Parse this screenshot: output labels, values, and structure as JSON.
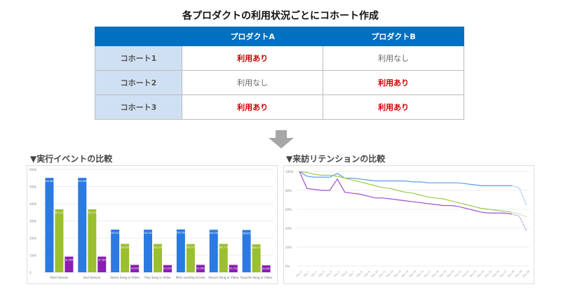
{
  "title": "各プロダクトの利用状況ごとにコホート作成",
  "table": {
    "headers": [
      "",
      "プロダクトA",
      "プロダクトB"
    ],
    "rows": [
      {
        "label": "コホート1",
        "a": "利用あり",
        "b": "利用なし"
      },
      {
        "label": "コホート2",
        "a": "利用なし",
        "b": "利用あり"
      },
      {
        "label": "コホート3",
        "a": "利用あり",
        "b": "利用あり"
      }
    ]
  },
  "colors": {
    "header": "#0070c0",
    "row_header": "#cfe0f3",
    "yes": "#cc0000",
    "blue": "#2a7ae2",
    "green": "#9bbf30",
    "purple": "#8a1fb0"
  },
  "sections": {
    "left": "▼実行イベントの比較",
    "right": "▼来訪リテンションの比較"
  },
  "chart_data": [
    {
      "type": "bar",
      "title": "実行イベントの比較",
      "categories": [
        "Start Session",
        "End Session",
        "Select Song or Video",
        "Play Song or Video",
        "Main Landing Screen",
        "Search Song or Video",
        "Favorite Song or Video"
      ],
      "yticks": [
        "0",
        "100k",
        "200k",
        "300k",
        "400k",
        "500k",
        "600k"
      ],
      "ylim": [
        0,
        600000
      ],
      "series": [
        {
          "name": "コホート1",
          "color": "#2a7ae2",
          "values": [
            550663,
            550663,
            248970,
            248352,
            250030,
            248058,
            246639
          ],
          "labels": [
            "550,663",
            "550,663",
            "248,970",
            "248,352",
            "250,030",
            "248,058",
            "246,639"
          ]
        },
        {
          "name": "コホート2",
          "color": "#9bbf30",
          "values": [
            367123,
            367123,
            165871,
            165104,
            164557,
            165771,
            163073
          ],
          "labels": [
            "367,123",
            "367,123",
            "165,871",
            "165,104",
            "164,557",
            "165,771",
            "163,073"
          ]
        },
        {
          "name": "コホート3",
          "color": "#8a1fb0",
          "values": [
            91584,
            91584,
            43406,
            42299,
            43569,
            43279,
            40683
          ],
          "labels": [
            "91,584",
            "91,584",
            "43,406",
            "42,299",
            "43,569",
            "43,279",
            "40,683"
          ]
        }
      ]
    },
    {
      "type": "line",
      "title": "来訪リテンションの比較",
      "x": [
        "Day 0",
        "Day 1",
        "Day 2",
        "Day 3",
        "Day 4",
        "Day 5",
        "Day 6",
        "Day 7",
        "Day 8",
        "Day 9",
        "Day 10",
        "Day 11",
        "Day 12",
        "Day 13",
        "Day 14",
        "Day 15",
        "Day 16",
        "Day 17",
        "Day 18",
        "Day 19",
        "Day 20",
        "Day 21",
        "Day 22",
        "Day 23",
        "Day 24",
        "Day 25",
        "Day 26",
        "Day 27",
        "Day 28",
        "Day 29",
        "Day 30"
      ],
      "yticks": [
        "0%",
        "20%",
        "40%",
        "60%",
        "80%",
        "100%"
      ],
      "ylim": [
        0,
        100
      ],
      "series": [
        {
          "name": "コホート1",
          "color": "#5b9be8",
          "values": [
            100,
            95,
            94,
            94,
            94,
            98,
            93,
            93,
            92,
            91,
            90,
            90,
            90,
            90,
            90,
            89,
            89,
            88,
            88,
            88,
            88,
            88,
            87,
            86,
            85,
            85,
            85,
            85,
            85,
            83,
            64
          ]
        },
        {
          "name": "コホート2",
          "color": "#9bc94a",
          "values": [
            100,
            99,
            97,
            96,
            96,
            95,
            93,
            91,
            89,
            87,
            85,
            83,
            82,
            80,
            78,
            77,
            75,
            73,
            72,
            71,
            69,
            67,
            65,
            63,
            61,
            60,
            59,
            58,
            57,
            55,
            52
          ]
        },
        {
          "name": "コホート3",
          "color": "#a04fd0",
          "values": [
            100,
            82,
            81,
            80,
            80,
            92,
            78,
            77,
            76,
            74,
            72,
            72,
            71,
            70,
            69,
            68,
            67,
            66,
            65,
            64,
            64,
            63,
            61,
            59,
            57,
            56,
            56,
            56,
            55,
            53,
            37
          ]
        }
      ],
      "dashed_from_index": 28
    }
  ]
}
